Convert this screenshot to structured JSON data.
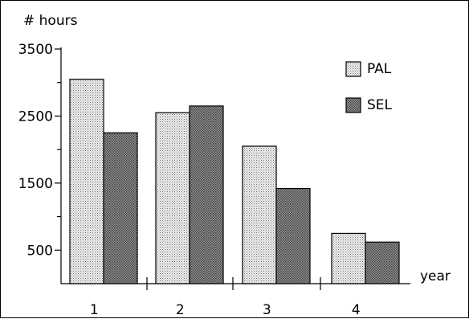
{
  "chart_data": {
    "type": "bar",
    "title": "",
    "ylabel": "# hours",
    "xlabel": "year",
    "categories": [
      "1",
      "2",
      "3",
      "4"
    ],
    "series": [
      {
        "name": "PAL",
        "values": [
          3050,
          2550,
          2050,
          750
        ]
      },
      {
        "name": "SEL",
        "values": [
          2250,
          2650,
          1420,
          620
        ]
      }
    ],
    "ylim": [
      0,
      3500
    ],
    "y_tick_labels": [
      "500",
      "1500",
      "2500",
      "3500"
    ],
    "grid": false,
    "legend_position": "top-right",
    "series_fills": [
      "light-stipple",
      "dark-stipple"
    ]
  }
}
